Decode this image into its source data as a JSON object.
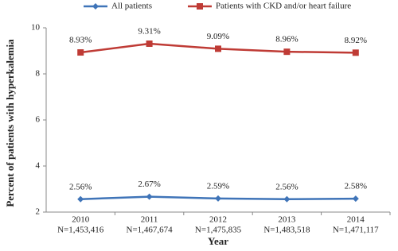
{
  "chart_data": {
    "type": "line",
    "x_label": "Year",
    "y_label": "Percent of patients with hyperkalemia",
    "categories": [
      "2010",
      "2011",
      "2012",
      "2013",
      "2014"
    ],
    "category_sublabels": [
      "N=1,453,416",
      "N=1,467,674",
      "N=1,475,835",
      "N=1,483,518",
      "N=1,471,117"
    ],
    "series": [
      {
        "name": "All patients",
        "color": "#3f74b8",
        "marker": "diamond",
        "values": [
          2.56,
          2.67,
          2.59,
          2.56,
          2.58
        ],
        "value_labels": [
          "2.56%",
          "2.67%",
          "2.59%",
          "2.56%",
          "2.58%"
        ]
      },
      {
        "name": "Patients with CKD and/or heart failure",
        "color": "#bf3b35",
        "marker": "square",
        "values": [
          8.93,
          9.31,
          9.09,
          8.96,
          8.92
        ],
        "value_labels": [
          "8.93%",
          "9.31%",
          "9.09%",
          "8.96%",
          "8.92%"
        ]
      }
    ],
    "ylim": [
      2,
      10
    ],
    "yticks": [
      2,
      4,
      6,
      8,
      10
    ],
    "grid": false,
    "legend": "top"
  }
}
